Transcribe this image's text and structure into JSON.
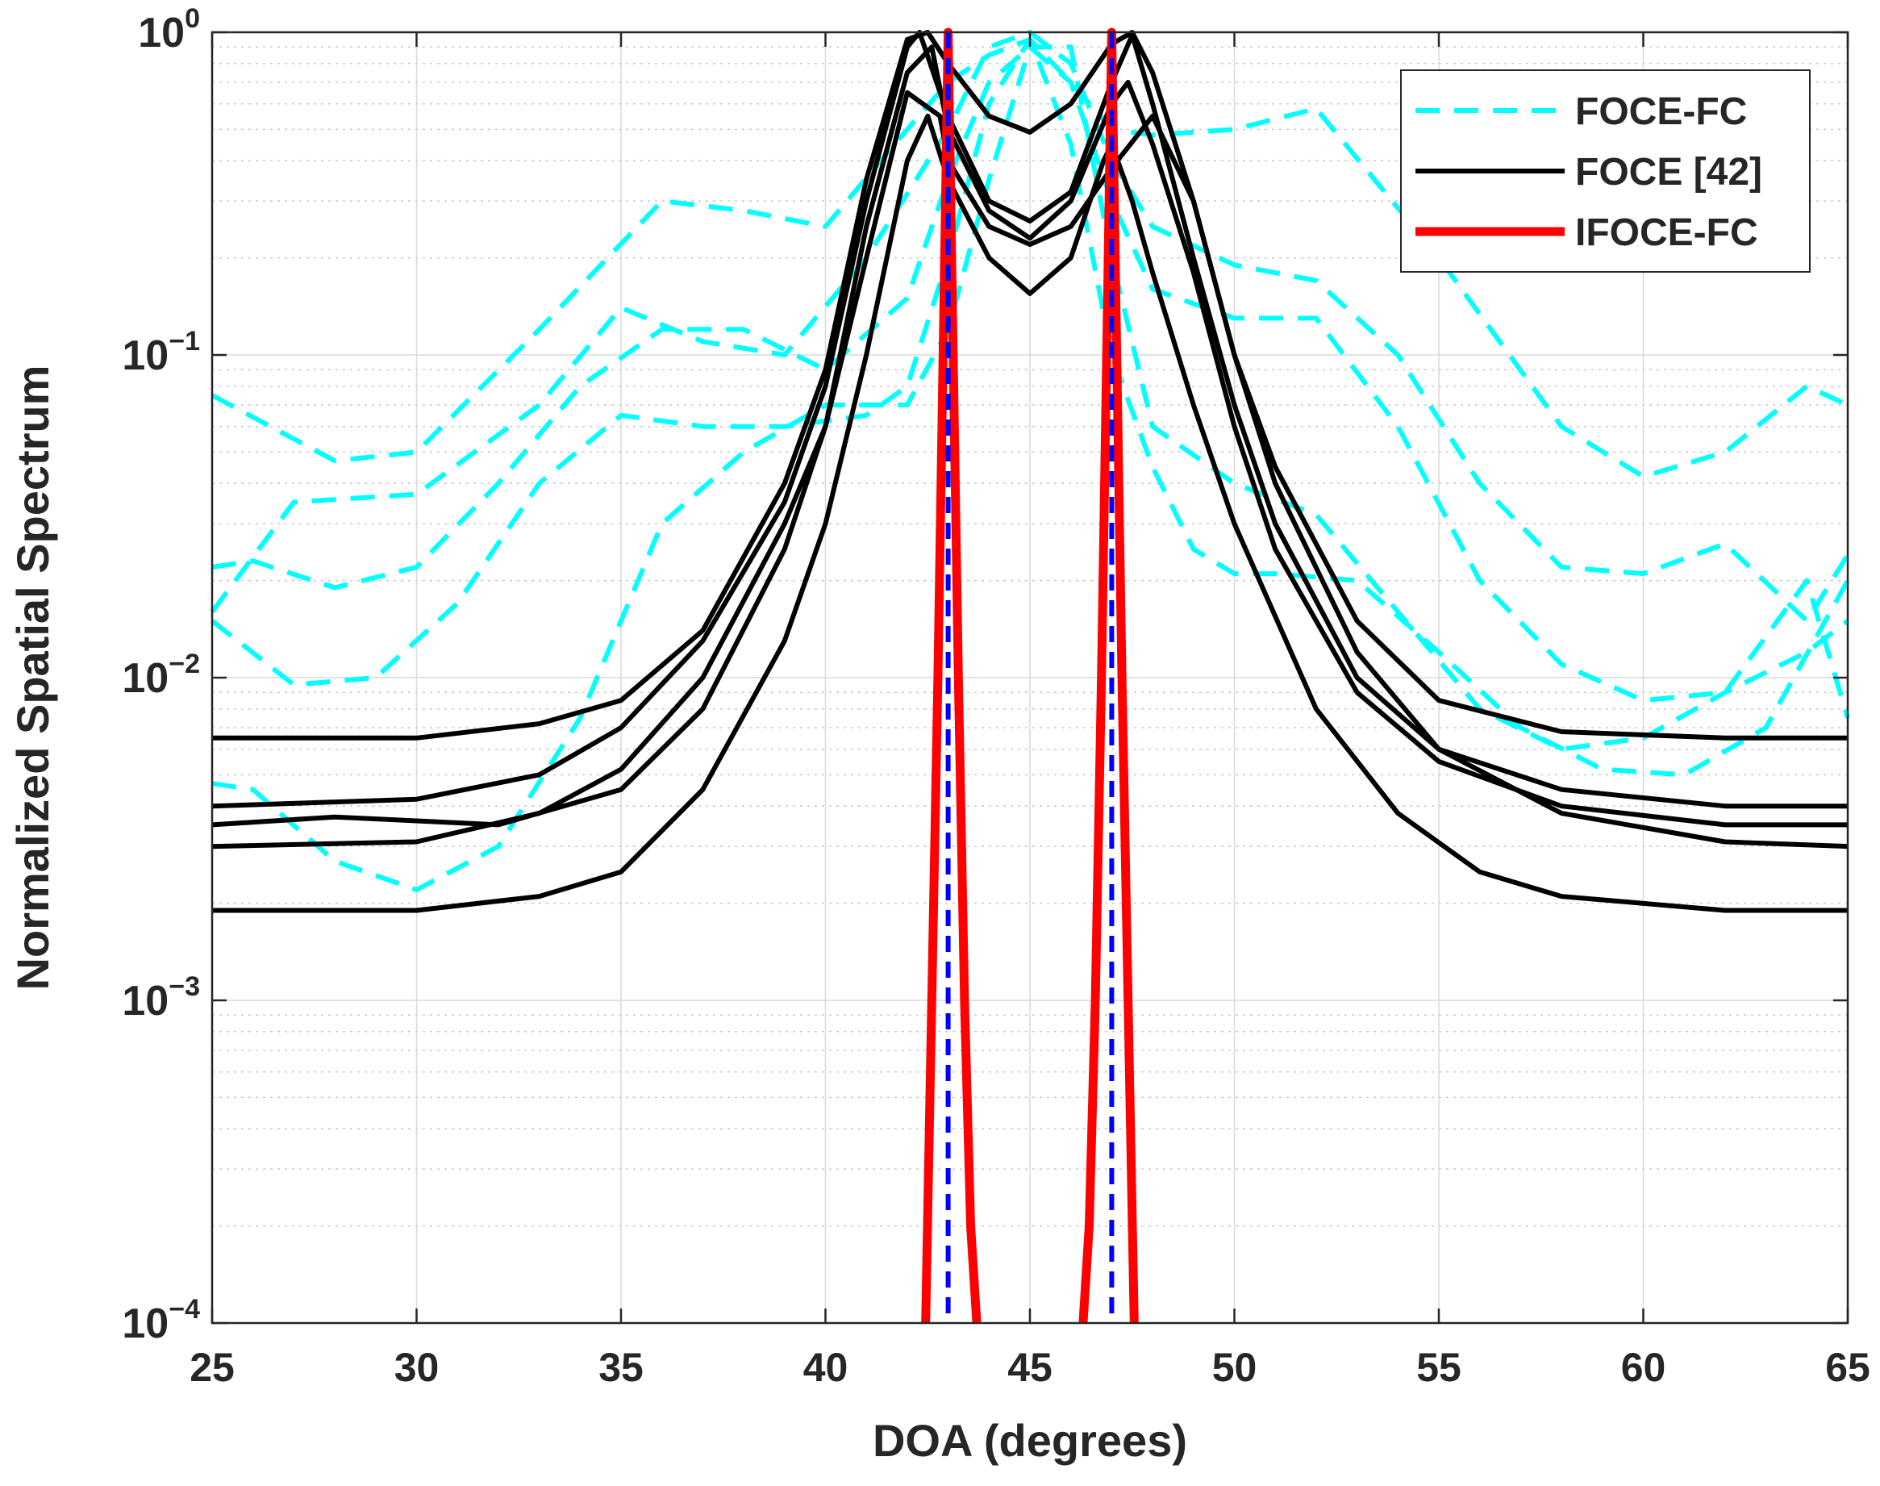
{
  "chart_data": {
    "type": "line",
    "title": "",
    "xlabel": "DOA (degrees)",
    "ylabel": "Normalized Spatial Spectrum",
    "xlim": [
      25,
      65
    ],
    "ylim": [
      0.0001,
      1
    ],
    "yscale": "log",
    "grid": true,
    "minor_grid": true,
    "x_ticks": [
      "25",
      "30",
      "35",
      "40",
      "45",
      "50",
      "55",
      "60",
      "65"
    ],
    "y_ticks": [
      {
        "value": 1,
        "base": "10",
        "exp": "0"
      },
      {
        "value": 0.1,
        "base": "10",
        "exp": "−1"
      },
      {
        "value": 0.01,
        "base": "10",
        "exp": "−2"
      },
      {
        "value": 0.001,
        "base": "10",
        "exp": "−3"
      },
      {
        "value": 0.0001,
        "base": "10",
        "exp": "−4"
      }
    ],
    "legend": {
      "position": "top-right",
      "entries": [
        {
          "label": "FOCE-FC",
          "color": "#00FFFF",
          "style": "dashed"
        },
        {
          "label": "FOCE [42]",
          "color": "#000000",
          "style": "solid"
        },
        {
          "label": "IFOCE-FC",
          "color": "#FF0000",
          "style": "solid"
        }
      ]
    },
    "series": [
      {
        "group": "FOCE-FC",
        "color": "#00FFFF",
        "style": "dashed",
        "x": [
          25,
          28,
          30,
          33,
          36,
          38,
          40,
          42,
          43,
          44,
          45,
          46,
          47,
          48,
          50,
          52,
          55,
          58,
          60,
          62,
          64,
          65
        ],
        "y": [
          0.075,
          0.047,
          0.05,
          0.12,
          0.3,
          0.28,
          0.25,
          0.5,
          0.7,
          0.85,
          0.95,
          0.7,
          0.5,
          0.48,
          0.5,
          0.58,
          0.2,
          0.06,
          0.042,
          0.05,
          0.08,
          0.07
        ]
      },
      {
        "group": "FOCE-FC",
        "color": "#00FFFF",
        "style": "dashed",
        "x": [
          25,
          27,
          30,
          33,
          35,
          37,
          39,
          41,
          43,
          44,
          45,
          46,
          47,
          48,
          50,
          52,
          54,
          56,
          58,
          60,
          62,
          64,
          65
        ],
        "y": [
          0.016,
          0.035,
          0.037,
          0.07,
          0.14,
          0.11,
          0.1,
          0.2,
          0.5,
          0.9,
          1.0,
          0.8,
          0.4,
          0.25,
          0.19,
          0.17,
          0.1,
          0.04,
          0.022,
          0.021,
          0.026,
          0.015,
          0.024
        ]
      },
      {
        "group": "FOCE-FC",
        "color": "#00FFFF",
        "style": "dashed",
        "x": [
          25,
          26,
          28,
          30,
          32,
          34,
          36,
          38,
          40,
          42,
          43,
          44,
          45,
          46,
          47,
          48,
          50,
          52,
          54,
          56,
          58,
          60,
          62,
          64,
          65
        ],
        "y": [
          0.022,
          0.023,
          0.019,
          0.022,
          0.04,
          0.08,
          0.12,
          0.12,
          0.09,
          0.15,
          0.35,
          0.7,
          0.9,
          0.7,
          0.3,
          0.16,
          0.13,
          0.13,
          0.06,
          0.02,
          0.011,
          0.0085,
          0.009,
          0.02,
          0.0075
        ]
      },
      {
        "group": "FOCE-FC",
        "color": "#00FFFF",
        "style": "dashed",
        "x": [
          25,
          27,
          29,
          31,
          33,
          35,
          37,
          39,
          41,
          42,
          43,
          44,
          45,
          46,
          47,
          48,
          49,
          50,
          51,
          53,
          55,
          57,
          59,
          61,
          63,
          65
        ],
        "y": [
          0.015,
          0.0095,
          0.01,
          0.017,
          0.04,
          0.065,
          0.06,
          0.06,
          0.065,
          0.08,
          0.2,
          0.6,
          0.95,
          0.45,
          0.1,
          0.045,
          0.025,
          0.021,
          0.021,
          0.02,
          0.012,
          0.007,
          0.0052,
          0.005,
          0.007,
          0.02
        ]
      },
      {
        "group": "FOCE-FC",
        "color": "#00FFFF",
        "style": "dashed",
        "x": [
          25,
          26,
          28,
          30,
          32,
          34,
          36,
          38,
          40,
          42,
          43,
          44,
          45,
          46,
          47,
          48,
          50,
          52,
          54,
          56,
          58,
          60,
          62,
          64,
          65
        ],
        "y": [
          0.0047,
          0.0045,
          0.0027,
          0.0022,
          0.003,
          0.0075,
          0.03,
          0.05,
          0.07,
          0.07,
          0.12,
          0.35,
          0.9,
          0.9,
          0.2,
          0.06,
          0.04,
          0.032,
          0.016,
          0.008,
          0.006,
          0.0065,
          0.009,
          0.012,
          0.015
        ]
      },
      {
        "group": "FOCE [42]",
        "color": "#000000",
        "style": "solid",
        "x": [
          25,
          30,
          33,
          35,
          37,
          39,
          40,
          41,
          42,
          42.5,
          43,
          44,
          45,
          46,
          47,
          47.5,
          48,
          49,
          50,
          51,
          53,
          55,
          58,
          62,
          65
        ],
        "y": [
          0.0065,
          0.0065,
          0.0072,
          0.0085,
          0.014,
          0.04,
          0.09,
          0.35,
          0.95,
          1.0,
          0.8,
          0.55,
          0.49,
          0.6,
          0.92,
          1.0,
          0.75,
          0.3,
          0.1,
          0.045,
          0.015,
          0.0085,
          0.0068,
          0.0065,
          0.0065
        ]
      },
      {
        "group": "FOCE [42]",
        "color": "#000000",
        "style": "solid",
        "x": [
          25,
          30,
          33,
          35,
          37,
          39,
          40,
          41,
          42,
          42.3,
          43,
          44,
          45,
          46,
          47,
          47.5,
          48,
          49,
          50,
          51,
          53,
          55,
          58,
          62,
          65
        ],
        "y": [
          0.004,
          0.0042,
          0.005,
          0.007,
          0.013,
          0.035,
          0.08,
          0.3,
          0.9,
          1.0,
          0.55,
          0.3,
          0.26,
          0.32,
          0.7,
          0.98,
          0.6,
          0.2,
          0.07,
          0.03,
          0.01,
          0.006,
          0.0045,
          0.004,
          0.004
        ]
      },
      {
        "group": "FOCE [42]",
        "color": "#000000",
        "style": "solid",
        "x": [
          25,
          28,
          30,
          32,
          35,
          37,
          39,
          40,
          41,
          42,
          42.6,
          43,
          44,
          45,
          46,
          47,
          47.4,
          48,
          49,
          50,
          51,
          53,
          55,
          58,
          62,
          65
        ],
        "y": [
          0.0035,
          0.0037,
          0.0036,
          0.0035,
          0.0045,
          0.008,
          0.025,
          0.06,
          0.25,
          0.75,
          0.9,
          0.5,
          0.28,
          0.23,
          0.3,
          0.6,
          0.7,
          0.45,
          0.18,
          0.06,
          0.025,
          0.009,
          0.0055,
          0.004,
          0.0035,
          0.0035
        ]
      },
      {
        "group": "FOCE [42]",
        "color": "#000000",
        "style": "solid",
        "x": [
          25,
          30,
          33,
          35,
          37,
          39,
          40,
          41,
          42,
          42.8,
          43,
          44,
          45,
          46,
          47,
          48,
          49,
          50,
          51,
          53,
          55,
          58,
          62,
          65
        ],
        "y": [
          0.003,
          0.0031,
          0.0038,
          0.0052,
          0.01,
          0.03,
          0.06,
          0.2,
          0.65,
          0.55,
          0.4,
          0.25,
          0.22,
          0.25,
          0.38,
          0.55,
          0.3,
          0.1,
          0.04,
          0.012,
          0.006,
          0.0038,
          0.0031,
          0.003
        ]
      },
      {
        "group": "FOCE [42]",
        "color": "#000000",
        "style": "solid",
        "x": [
          25,
          30,
          33,
          35,
          37,
          39,
          40,
          41,
          42,
          42.5,
          43,
          44,
          45,
          46,
          46.8,
          47,
          47.5,
          48,
          49,
          50,
          52,
          54,
          56,
          58,
          62,
          65
        ],
        "y": [
          0.0019,
          0.0019,
          0.0021,
          0.0025,
          0.0045,
          0.013,
          0.03,
          0.1,
          0.4,
          0.55,
          0.35,
          0.2,
          0.155,
          0.2,
          0.4,
          0.45,
          0.3,
          0.18,
          0.07,
          0.03,
          0.008,
          0.0038,
          0.0025,
          0.0021,
          0.0019,
          0.0019
        ]
      },
      {
        "group": "IFOCE-FC",
        "color": "#FF0000",
        "style": "solid",
        "x": [
          42.45,
          42.6,
          42.75,
          42.9,
          43.0,
          43.1,
          43.25,
          43.4,
          43.55,
          43.7
        ],
        "y": [
          0.0001,
          0.001,
          0.01,
          0.15,
          1.0,
          0.15,
          0.01,
          0.001,
          0.0002,
          0.0001
        ]
      },
      {
        "group": "IFOCE-FC",
        "color": "#FF0000",
        "style": "solid",
        "x": [
          46.3,
          46.45,
          46.6,
          46.75,
          46.9,
          47.0,
          47.1,
          47.25,
          47.4,
          47.55
        ],
        "y": [
          0.0001,
          0.0002,
          0.001,
          0.01,
          0.15,
          1.0,
          0.15,
          0.01,
          0.001,
          0.0001
        ]
      }
    ],
    "vertical_markers": [
      {
        "x": 43,
        "color": "#0000FF",
        "style": "dashed"
      },
      {
        "x": 47,
        "color": "#0000FF",
        "style": "dashed"
      }
    ]
  }
}
